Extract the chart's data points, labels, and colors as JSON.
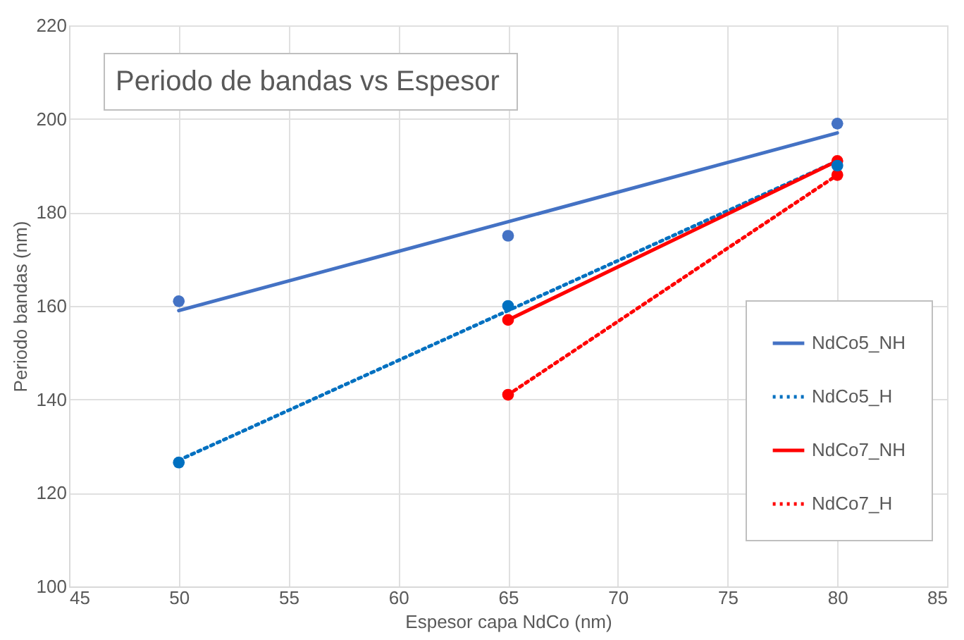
{
  "chart_data": {
    "type": "scatter",
    "title": "Periodo de bandas vs Espesor",
    "xlabel": "Espesor capa NdCo (nm)",
    "ylabel": "Periodo bandas (nm)",
    "xlim": [
      45,
      85
    ],
    "xticks": [
      45,
      50,
      55,
      60,
      65,
      70,
      75,
      80,
      85
    ],
    "ylim": [
      100,
      220
    ],
    "yticks": [
      100,
      120,
      140,
      160,
      180,
      200,
      220
    ],
    "grid": true,
    "legend": "right",
    "marker": "circle",
    "series": [
      {
        "type": "scatter",
        "color": "#4472c4",
        "x": [
          50,
          65,
          80
        ],
        "values": [
          161,
          175,
          199
        ]
      },
      {
        "type": "scatter",
        "color": "#0070c0",
        "x": [
          50,
          65,
          80
        ],
        "values": [
          126.5,
          160,
          190
        ]
      },
      {
        "type": "scatter",
        "color": "#ff0000",
        "x": [
          65,
          80
        ],
        "values": [
          157,
          191
        ]
      },
      {
        "type": "scatter",
        "color": "#ff0000",
        "x": [
          65,
          80
        ],
        "values": [
          141,
          188
        ]
      },
      {
        "type": "line",
        "name": "NdCo5_NH",
        "color": "#4472c4",
        "line_style": "solid",
        "marker": "none",
        "x": [
          50,
          80
        ],
        "values": [
          159,
          197
        ]
      },
      {
        "type": "line",
        "name": "NdCo5_H",
        "color": "#0070c0",
        "line_style": "dotted",
        "marker": "none",
        "x": [
          50,
          80
        ],
        "values": [
          127,
          191
        ]
      },
      {
        "type": "line",
        "name": "NdCo7_NH",
        "color": "#ff0000",
        "line_style": "solid",
        "marker": "none",
        "x": [
          65,
          80
        ],
        "values": [
          157,
          191
        ]
      },
      {
        "type": "line",
        "name": "NdCo7_H",
        "color": "#ff0000",
        "line_style": "dotted",
        "marker": "none",
        "x": [
          65,
          80
        ],
        "values": [
          141,
          188
        ]
      }
    ]
  }
}
